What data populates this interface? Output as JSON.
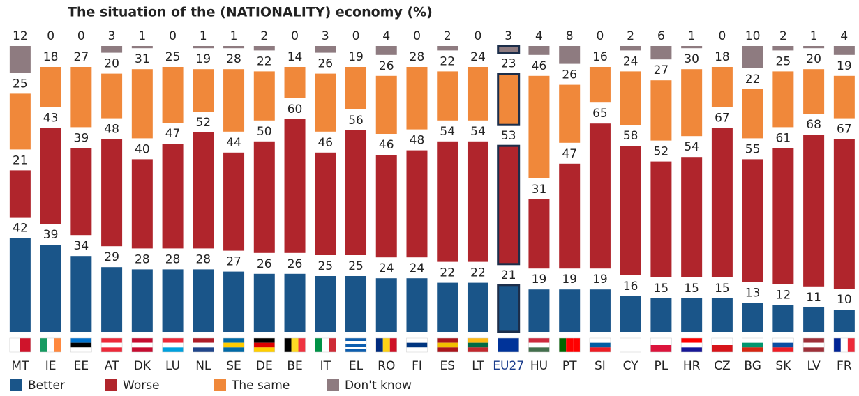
{
  "chart_data": {
    "type": "stacked_bar",
    "title": "The situation of the (NATIONALITY) economy  (%)",
    "categories": [
      "MT",
      "IE",
      "EE",
      "AT",
      "DK",
      "LU",
      "NL",
      "SE",
      "DE",
      "BE",
      "IT",
      "EL",
      "RO",
      "FI",
      "ES",
      "LT",
      "EU27",
      "HU",
      "PT",
      "SI",
      "CY",
      "PL",
      "HR",
      "CZ",
      "BG",
      "SK",
      "LV",
      "FR"
    ],
    "highlight_category": "EU27",
    "series": [
      {
        "name": "Better",
        "color": "#1a5589",
        "values": [
          42,
          39,
          34,
          29,
          28,
          28,
          28,
          27,
          26,
          26,
          25,
          25,
          24,
          24,
          22,
          22,
          21,
          19,
          19,
          19,
          16,
          15,
          15,
          15,
          13,
          12,
          11,
          10
        ]
      },
      {
        "name": "Worse",
        "color": "#b0252c",
        "values": [
          21,
          43,
          39,
          48,
          40,
          47,
          52,
          44,
          50,
          60,
          46,
          56,
          46,
          48,
          54,
          54,
          53,
          31,
          47,
          65,
          58,
          52,
          54,
          67,
          55,
          61,
          68,
          67
        ]
      },
      {
        "name": "The same",
        "color": "#f0883a",
        "values": [
          25,
          18,
          27,
          20,
          31,
          25,
          19,
          28,
          22,
          14,
          26,
          19,
          26,
          28,
          22,
          24,
          23,
          46,
          26,
          16,
          24,
          27,
          30,
          18,
          22,
          25,
          20,
          19
        ]
      },
      {
        "name": "Don't know",
        "color": "#8e7b80",
        "values": [
          12,
          0,
          0,
          3,
          1,
          0,
          1,
          1,
          2,
          0,
          3,
          0,
          4,
          0,
          2,
          0,
          3,
          4,
          8,
          0,
          2,
          6,
          1,
          0,
          10,
          2,
          1,
          4
        ]
      }
    ]
  }
}
